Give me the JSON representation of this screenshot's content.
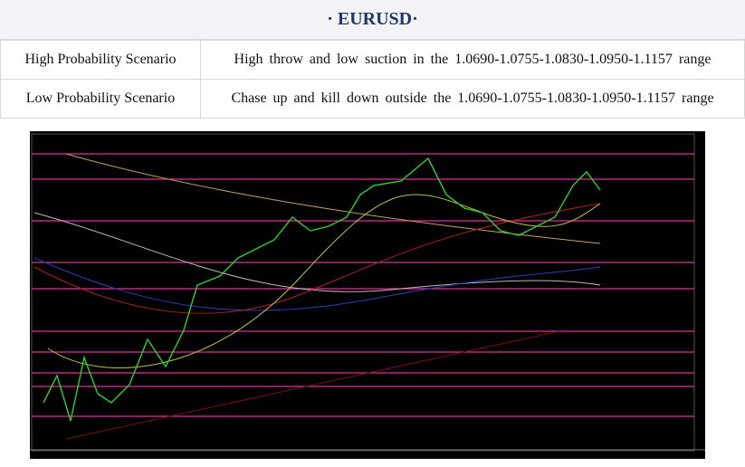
{
  "header": {
    "title": "· EURUSD·"
  },
  "table": {
    "rows": [
      [
        "High Probability Scenario",
        "High throw and low suction in the 1.0690-1.0755-1.0830-1.0950-1.1157 range"
      ],
      [
        "Low Probability Scenario",
        "Chase up and kill down outside the 1.0690-1.0755-1.0830-1.0950-1.1157 range"
      ]
    ]
  }
}
